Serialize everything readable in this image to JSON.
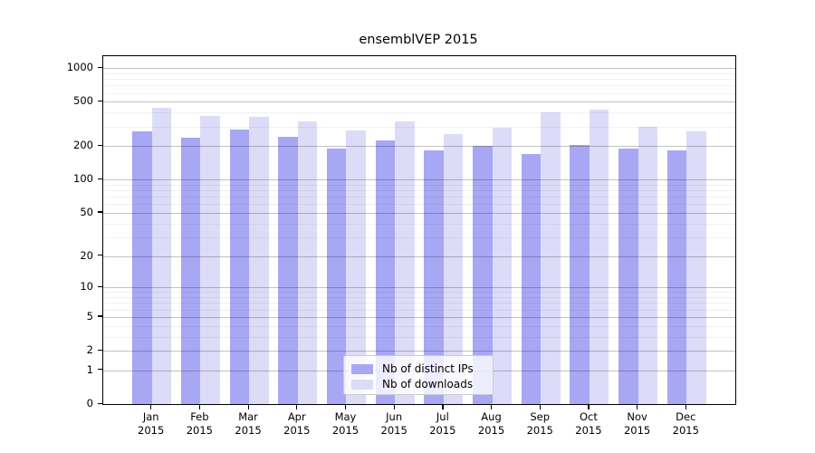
{
  "chart_data": {
    "type": "bar",
    "title": "ensemblVEP 2015",
    "xlabel": "",
    "ylabel": "",
    "scale": "log10(1+v)",
    "ylim": [
      0,
      1280
    ],
    "grid": true,
    "legend_position": "bottom-center",
    "yticks": [
      0,
      1,
      2,
      5,
      10,
      20,
      50,
      100,
      200,
      500,
      1000
    ],
    "minor_gridlines": [
      3,
      4,
      6,
      7,
      8,
      9,
      30,
      40,
      60,
      70,
      80,
      90,
      300,
      400,
      600,
      700,
      800,
      900
    ],
    "categories": [
      "Jan 2015",
      "Feb 2015",
      "Mar 2015",
      "Apr 2015",
      "May 2015",
      "Jun 2015",
      "Jul 2015",
      "Aug 2015",
      "Sep 2015",
      "Oct 2015",
      "Nov 2015",
      "Dec 2015"
    ],
    "month_labels": [
      "Jan",
      "Feb",
      "Mar",
      "Apr",
      "May",
      "Jun",
      "Jul",
      "Aug",
      "Sep",
      "Oct",
      "Nov",
      "Dec"
    ],
    "year_label": "2015",
    "series": [
      {
        "name": "Nb of distinct IPs",
        "color": "#a7a7f4",
        "values": [
          272,
          240,
          281,
          241,
          192,
          226,
          183,
          200,
          170,
          205,
          192,
          185
        ]
      },
      {
        "name": "Nb of downloads",
        "color": "#dcdcf8",
        "values": [
          440,
          374,
          367,
          333,
          278,
          332,
          257,
          294,
          406,
          429,
          299,
          271
        ]
      }
    ]
  }
}
